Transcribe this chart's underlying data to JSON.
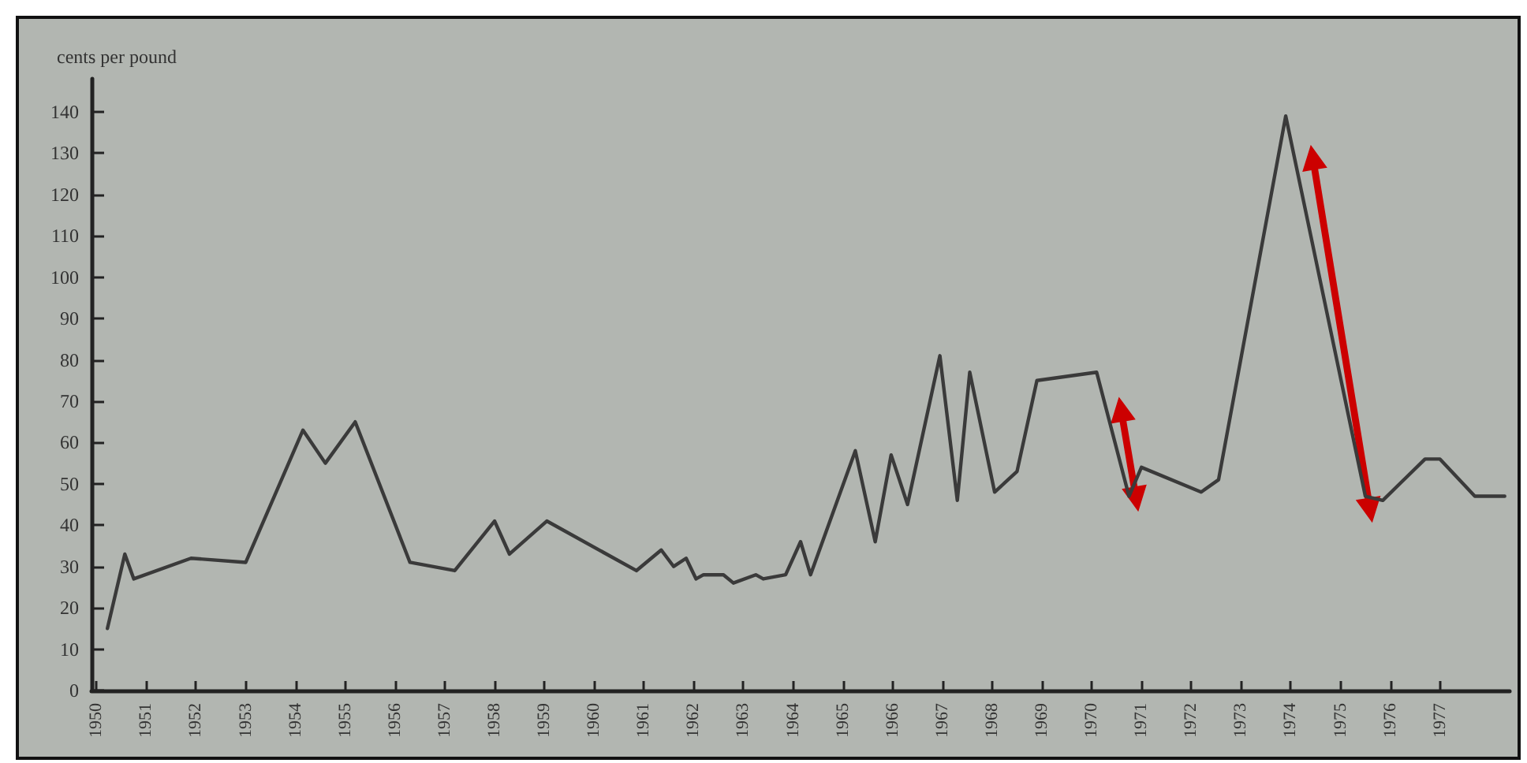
{
  "chart_data": {
    "type": "line",
    "ylabel": "cents per pound",
    "x": [
      1950.22,
      1950.57,
      1950.75,
      1951.9,
      1953.0,
      1954.15,
      1954.6,
      1955.2,
      1956.3,
      1957.2,
      1958.0,
      1958.3,
      1959.05,
      1960.85,
      1961.35,
      1961.6,
      1961.85,
      1962.05,
      1962.2,
      1962.6,
      1962.8,
      1963.25,
      1963.4,
      1963.85,
      1964.15,
      1964.35,
      1965.25,
      1965.65,
      1965.97,
      1966.3,
      1966.95,
      1967.3,
      1967.55,
      1968.05,
      1968.5,
      1968.9,
      1970.1,
      1970.75,
      1971.0,
      1972.2,
      1972.55,
      1973.9,
      1975.5,
      1975.85,
      1976.7,
      1977.0,
      1977.7,
      1978.3
    ],
    "series": [
      {
        "color": "#3a3a3a",
        "values": [
          15,
          33,
          27,
          32,
          31,
          63,
          55,
          65,
          31,
          29,
          41,
          33,
          41,
          29,
          34,
          30,
          32,
          27,
          28,
          28,
          26,
          28,
          27,
          28,
          36,
          28,
          58,
          36,
          57,
          45,
          81,
          46,
          77,
          48,
          53,
          75,
          77,
          47,
          54,
          48,
          51,
          139,
          47,
          46,
          56,
          56,
          47,
          47
        ]
      }
    ],
    "xlim": [
      1949.9,
      1978.4
    ],
    "xticks": [
      1950,
      1951,
      1952,
      1953,
      1954,
      1955,
      1956,
      1957,
      1958,
      1959,
      1960,
      1961,
      1962,
      1963,
      1964,
      1965,
      1966,
      1967,
      1968,
      1969,
      1970,
      1971,
      1972,
      1973,
      1974,
      1975,
      1976,
      1977
    ],
    "ylim": [
      0,
      148
    ],
    "yticks": [
      0,
      10,
      20,
      30,
      40,
      50,
      60,
      70,
      80,
      90,
      100,
      110,
      120,
      130,
      140
    ],
    "grid": false,
    "marker": "none",
    "line_style": "solid"
  }
}
